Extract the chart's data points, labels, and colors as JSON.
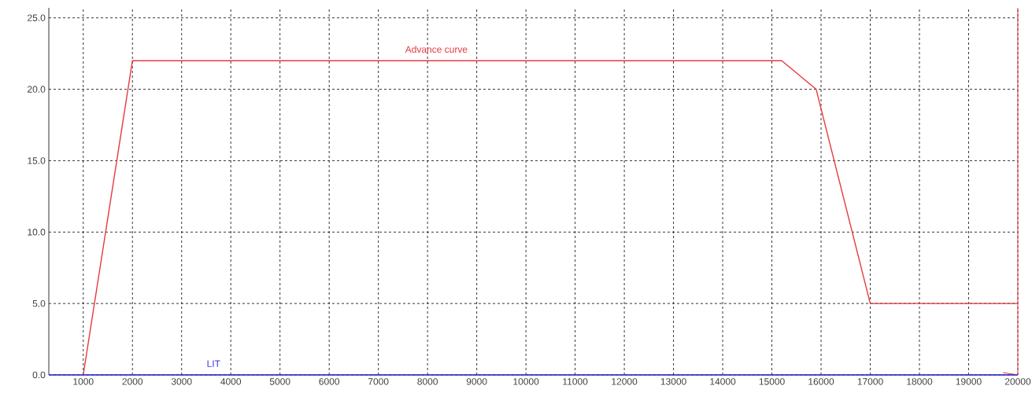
{
  "chart_data": {
    "type": "line",
    "xlim": [
      300,
      20000
    ],
    "ylim": [
      0,
      25.7
    ],
    "xticks": [
      1000,
      2000,
      3000,
      4000,
      5000,
      6000,
      7000,
      8000,
      9000,
      10000,
      11000,
      12000,
      13000,
      14000,
      15000,
      16000,
      17000,
      18000,
      19000,
      20000
    ],
    "yticks": [
      {
        "value": 0,
        "label": "0.0"
      },
      {
        "value": 5,
        "label": "5.0"
      },
      {
        "value": 10,
        "label": "10.0"
      },
      {
        "value": 15,
        "label": "15.0"
      },
      {
        "value": 20,
        "label": "20.0"
      },
      {
        "value": 25,
        "label": "25.0"
      }
    ],
    "grid": true,
    "legend": false,
    "marker": "none",
    "line_style": "solid",
    "series": [
      {
        "name": "Advance curve",
        "color": "#e8383d",
        "x": [
          1000,
          2000,
          15200,
          15900,
          17000,
          20000
        ],
        "values": [
          0,
          22,
          22,
          20,
          5,
          5
        ]
      },
      {
        "name": "LIT",
        "color": "#3a3ae0",
        "x": [
          300,
          20000
        ],
        "values": [
          0,
          0
        ]
      }
    ],
    "ref_lines": [
      {
        "axis": "x",
        "value": 20000,
        "color": "#e8383d"
      }
    ]
  }
}
